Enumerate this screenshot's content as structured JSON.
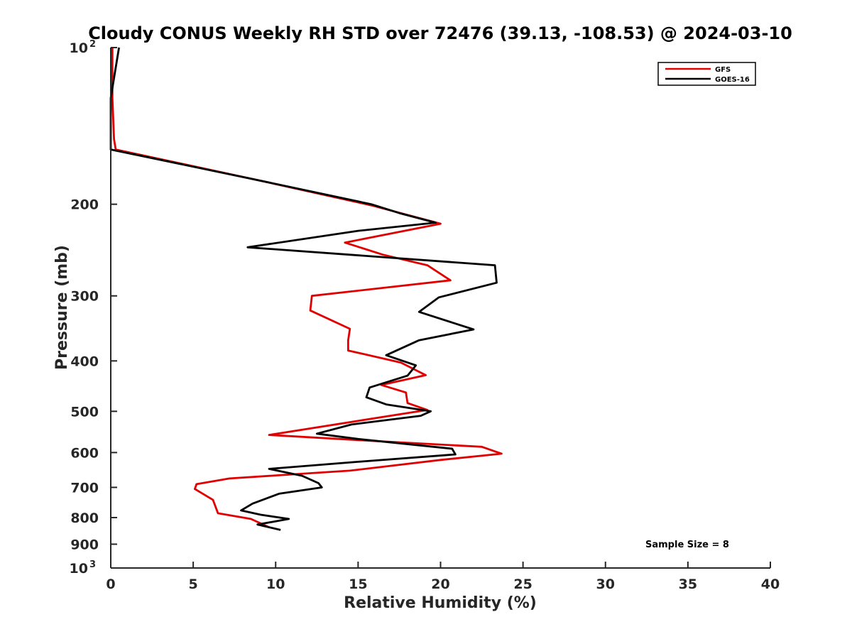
{
  "chart_data": {
    "type": "line",
    "title": "Cloudy CONUS Weekly RH STD over 72476 (39.13, -108.53) @ 2024-03-10",
    "xlabel": "Relative Humidity (%)",
    "ylabel": "Pressure (mb)",
    "xlim": [
      0,
      40
    ],
    "ylim": [
      1000,
      100
    ],
    "yscale": "log",
    "y_reversed": true,
    "x_ticks": [
      0,
      5,
      10,
      15,
      20,
      25,
      30,
      35,
      40
    ],
    "x_tick_labels": [
      "0",
      "5",
      "10",
      "15",
      "20",
      "25",
      "30",
      "35",
      "40"
    ],
    "y_ticks": [
      100,
      200,
      300,
      400,
      500,
      600,
      700,
      800,
      900,
      1000
    ],
    "y_tick_labels": [
      {
        "base": "10",
        "exp": "2"
      },
      {
        "base": "200",
        "exp": ""
      },
      {
        "base": "300",
        "exp": ""
      },
      {
        "base": "400",
        "exp": ""
      },
      {
        "base": "500",
        "exp": ""
      },
      {
        "base": "600",
        "exp": ""
      },
      {
        "base": "700",
        "exp": ""
      },
      {
        "base": "800",
        "exp": ""
      },
      {
        "base": "900",
        "exp": ""
      },
      {
        "base": "10",
        "exp": "3"
      }
    ],
    "grid": false,
    "legend_position": "top-right",
    "series": [
      {
        "name": "GFS",
        "color": "#e00000",
        "points": [
          [
            0.1,
            100
          ],
          [
            0.1,
            125
          ],
          [
            0.2,
            150
          ],
          [
            0.3,
            157
          ],
          [
            9.0,
            180
          ],
          [
            15.8,
            201
          ],
          [
            20.0,
            218
          ],
          [
            14.2,
            237
          ],
          [
            16.5,
            250
          ],
          [
            19.2,
            262
          ],
          [
            20.6,
            280
          ],
          [
            12.2,
            300
          ],
          [
            12.1,
            320
          ],
          [
            14.5,
            347
          ],
          [
            14.4,
            365
          ],
          [
            14.4,
            382
          ],
          [
            17.6,
            403
          ],
          [
            19.1,
            426
          ],
          [
            16.4,
            445
          ],
          [
            17.9,
            460
          ],
          [
            18.0,
            482
          ],
          [
            19.2,
            497
          ],
          [
            9.6,
            555
          ],
          [
            16.0,
            570
          ],
          [
            22.5,
            585
          ],
          [
            23.7,
            603
          ],
          [
            20.0,
            620
          ],
          [
            14.5,
            650
          ],
          [
            7.2,
            673
          ],
          [
            5.2,
            690
          ],
          [
            5.1,
            705
          ],
          [
            6.2,
            740
          ],
          [
            6.5,
            785
          ],
          [
            8.5,
            805
          ],
          [
            9.6,
            835
          ]
        ]
      },
      {
        "name": "GOES-16",
        "color": "#000000",
        "points": [
          [
            0.5,
            100
          ],
          [
            0.0,
            125
          ],
          [
            0.0,
            155
          ],
          [
            0.0,
            157
          ],
          [
            9.0,
            180
          ],
          [
            15.8,
            200
          ],
          [
            17.5,
            208
          ],
          [
            19.7,
            217
          ],
          [
            15.0,
            225
          ],
          [
            8.3,
            242
          ],
          [
            16.7,
            253
          ],
          [
            23.3,
            262
          ],
          [
            23.4,
            283
          ],
          [
            19.9,
            302
          ],
          [
            18.7,
            322
          ],
          [
            22.0,
            348
          ],
          [
            18.7,
            365
          ],
          [
            16.7,
            390
          ],
          [
            18.5,
            408
          ],
          [
            18.0,
            427
          ],
          [
            15.7,
            450
          ],
          [
            15.5,
            470
          ],
          [
            16.7,
            485
          ],
          [
            19.4,
            500
          ],
          [
            18.8,
            510
          ],
          [
            14.6,
            530
          ],
          [
            12.5,
            552
          ],
          [
            15.0,
            565
          ],
          [
            20.7,
            590
          ],
          [
            20.9,
            605
          ],
          [
            15.0,
            625
          ],
          [
            9.6,
            645
          ],
          [
            11.6,
            665
          ],
          [
            12.6,
            687
          ],
          [
            12.8,
            700
          ],
          [
            10.2,
            720
          ],
          [
            8.6,
            752
          ],
          [
            7.9,
            775
          ],
          [
            9.1,
            790
          ],
          [
            10.8,
            805
          ],
          [
            8.9,
            825
          ],
          [
            10.3,
            845
          ]
        ]
      }
    ],
    "annotations": [
      "Sample Size = 8"
    ]
  }
}
